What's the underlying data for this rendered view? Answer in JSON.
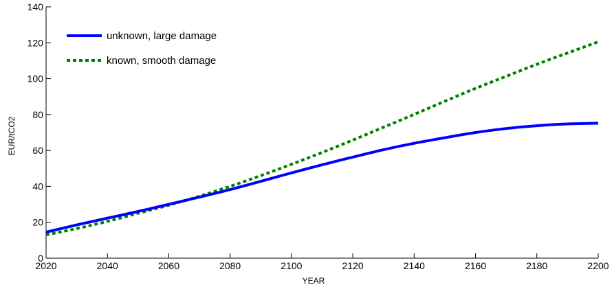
{
  "chart_data": {
    "type": "line",
    "title": "",
    "xlabel": "YEAR",
    "ylabel": "EUR/tCO2",
    "xlim": [
      2020,
      2200
    ],
    "ylim": [
      0,
      140
    ],
    "xticks": [
      2020,
      2040,
      2060,
      2080,
      2100,
      2120,
      2140,
      2160,
      2180,
      2200
    ],
    "yticks": [
      0,
      20,
      40,
      60,
      80,
      100,
      120,
      140
    ],
    "grid": false,
    "legend_position": "top-left",
    "x": [
      2020,
      2030,
      2040,
      2050,
      2060,
      2070,
      2080,
      2090,
      2100,
      2110,
      2120,
      2130,
      2140,
      2150,
      2160,
      2170,
      2180,
      2190,
      2200
    ],
    "series": [
      {
        "name": "unknown, large damage",
        "color": "#0000ff",
        "style": "solid",
        "values": [
          14.5,
          18.5,
          22.3,
          26.0,
          30.0,
          34.0,
          38.2,
          42.8,
          47.5,
          52.0,
          56.3,
          60.4,
          64.0,
          67.1,
          70.0,
          72.2,
          73.8,
          74.8,
          75.2
        ]
      },
      {
        "name": "known, smooth damage",
        "color": "#008000",
        "style": "dotted",
        "values": [
          13.0,
          16.5,
          20.5,
          25.0,
          29.5,
          34.5,
          40.0,
          46.0,
          52.3,
          58.9,
          65.8,
          72.9,
          80.1,
          87.4,
          94.6,
          101.3,
          108.0,
          114.3,
          120.5
        ]
      }
    ]
  }
}
